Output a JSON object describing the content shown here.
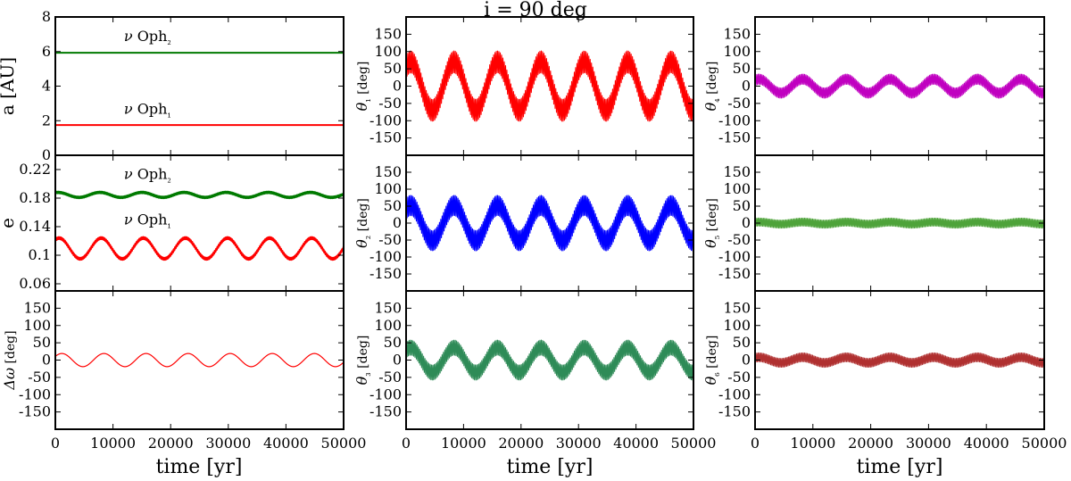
{
  "figure": {
    "title": "i = 90 deg",
    "xlabel": "time [yr]"
  },
  "colors": {
    "red": "#ff0000",
    "green": "#007a00",
    "blue": "#0000ff",
    "magenta": "#c000c0",
    "seagreen": "#2e8b57",
    "lightgreen": "#4ea33a",
    "brown": "#b03030"
  },
  "chart_data": [
    {
      "id": "a",
      "type": "line",
      "ylabel": "a [AU]",
      "xlim": [
        0,
        50000
      ],
      "ylim": [
        0,
        8
      ],
      "x_ticks": [
        0,
        10000,
        20000,
        30000,
        40000,
        50000
      ],
      "x_tick_labels_shown": false,
      "y_ticks": [
        0,
        2,
        4,
        6,
        8
      ],
      "y_tick_labels": [
        "0",
        "2",
        "4",
        "6",
        "8"
      ],
      "annotations": [
        {
          "text": "ν Oph₂",
          "x": 16000,
          "y": 6.6
        },
        {
          "text": "ν Oph₁",
          "x": 16000,
          "y": 2.4
        }
      ],
      "series": [
        {
          "name": "ν Oph₂",
          "color": "green",
          "mean": 5.93,
          "slow_amp": 0,
          "slow_period": 1,
          "fast_amp": 0,
          "fast_period": 1,
          "phase": 0,
          "width": 2
        },
        {
          "name": "ν Oph₁",
          "color": "red",
          "mean": 1.75,
          "slow_amp": 0,
          "slow_period": 1,
          "fast_amp": 0,
          "fast_period": 1,
          "phase": 0,
          "width": 2
        }
      ]
    },
    {
      "id": "e",
      "type": "line",
      "ylabel": "e",
      "xlim": [
        0,
        50000
      ],
      "ylim": [
        0.05,
        0.24
      ],
      "x_ticks": [
        0,
        10000,
        20000,
        30000,
        40000,
        50000
      ],
      "x_tick_labels_shown": false,
      "y_ticks": [
        0.06,
        0.1,
        0.14,
        0.18,
        0.22
      ],
      "y_tick_labels": [
        "0.06",
        "0.1",
        "0.14",
        "0.18",
        "0.22"
      ],
      "annotations": [
        {
          "text": "ν Oph₂",
          "x": 16000,
          "y": 0.207
        },
        {
          "text": "ν Oph₁",
          "x": 16000,
          "y": 0.143
        }
      ],
      "series": [
        {
          "name": "ν Oph₂",
          "color": "green",
          "mean": 0.1845,
          "slow_amp": 0.0035,
          "slow_period": 7300,
          "fast_amp": 0.0012,
          "fast_period": 230,
          "phase": 1.2,
          "width": 2
        },
        {
          "name": "ν Oph₁",
          "color": "red",
          "mean": 0.1095,
          "slow_amp": 0.0145,
          "slow_period": 7300,
          "fast_amp": 0.0015,
          "fast_period": 230,
          "phase": 1.0,
          "width": 2
        }
      ]
    },
    {
      "id": "dw",
      "type": "line",
      "ylabel": "Δω [deg]",
      "xlim": [
        0,
        50000
      ],
      "ylim": [
        -200,
        200
      ],
      "x_ticks": [
        0,
        10000,
        20000,
        30000,
        40000,
        50000
      ],
      "x_tick_labels": [
        "0",
        "10000",
        "20000",
        "30000",
        "40000",
        "50000"
      ],
      "y_ticks": [
        -150,
        -100,
        -50,
        0,
        50,
        100,
        150
      ],
      "y_tick_labels": [
        "-150",
        "-100",
        "-50",
        "0",
        "50",
        "100",
        "150"
      ],
      "series": [
        {
          "color": "red",
          "mean": 0,
          "slow_amp": 19,
          "slow_period": 7300,
          "fast_amp": 0,
          "fast_period": 1,
          "phase": 0.6,
          "width": 1.2
        }
      ]
    },
    {
      "id": "t1",
      "type": "line",
      "ylabel": "θ₁ [deg]",
      "xlim": [
        0,
        50000
      ],
      "ylim": [
        -200,
        200
      ],
      "x_ticks": [
        0,
        10000,
        20000,
        30000,
        40000,
        50000
      ],
      "x_tick_labels_shown": false,
      "y_ticks": [
        -150,
        -100,
        -50,
        0,
        50,
        100,
        150
      ],
      "y_tick_labels": [
        "-150",
        "-100",
        "-50",
        "0",
        "50",
        "100",
        "150"
      ],
      "series": [
        {
          "color": "red",
          "mean": 0,
          "slow_amp": 70,
          "slow_period": 7550,
          "fast_amp": 32,
          "fast_period": 230,
          "phase": 0.9,
          "width": 1
        }
      ]
    },
    {
      "id": "t2",
      "type": "line",
      "ylabel": "θ₂ [deg]",
      "xlim": [
        0,
        50000
      ],
      "ylim": [
        -200,
        200
      ],
      "x_ticks": [
        0,
        10000,
        20000,
        30000,
        40000,
        50000
      ],
      "x_tick_labels_shown": false,
      "y_ticks": [
        -150,
        -100,
        -50,
        0,
        50,
        100,
        150
      ],
      "y_tick_labels": [
        "-150",
        "-100",
        "-50",
        "0",
        "50",
        "100",
        "150"
      ],
      "series": [
        {
          "color": "blue",
          "mean": 0,
          "slow_amp": 52,
          "slow_period": 7550,
          "fast_amp": 30,
          "fast_period": 230,
          "phase": 0.9,
          "width": 1
        }
      ]
    },
    {
      "id": "t3",
      "type": "line",
      "ylabel": "θ₃ [deg]",
      "xlim": [
        0,
        50000
      ],
      "ylim": [
        -200,
        200
      ],
      "x_ticks": [
        0,
        10000,
        20000,
        30000,
        40000,
        50000
      ],
      "x_tick_labels": [
        "0",
        "10000",
        "20000",
        "30000",
        "40000",
        "50000"
      ],
      "y_ticks": [
        -150,
        -100,
        -50,
        0,
        50,
        100,
        150
      ],
      "y_tick_labels": [
        "-150",
        "-100",
        "-50",
        "0",
        "50",
        "100",
        "150"
      ],
      "series": [
        {
          "color": "seagreen",
          "mean": 0,
          "slow_amp": 36,
          "slow_period": 7550,
          "fast_amp": 22,
          "fast_period": 230,
          "phase": 0.9,
          "width": 1
        }
      ]
    },
    {
      "id": "t4",
      "type": "line",
      "ylabel": "θ₄ [deg]",
      "xlim": [
        0,
        50000
      ],
      "ylim": [
        -200,
        200
      ],
      "x_ticks": [
        0,
        10000,
        20000,
        30000,
        40000,
        50000
      ],
      "x_tick_labels_shown": false,
      "y_ticks": [
        -150,
        -100,
        -50,
        0,
        50,
        100,
        150
      ],
      "y_tick_labels": [
        "-150",
        "-100",
        "-50",
        "0",
        "50",
        "100",
        "150"
      ],
      "series": [
        {
          "color": "magenta",
          "mean": 0,
          "slow_amp": 20,
          "slow_period": 7550,
          "fast_amp": 15,
          "fast_period": 230,
          "phase": 1.0,
          "width": 1
        }
      ]
    },
    {
      "id": "t5",
      "type": "line",
      "ylabel": "θ₅ [deg]",
      "xlim": [
        0,
        50000
      ],
      "ylim": [
        -200,
        200
      ],
      "x_ticks": [
        0,
        10000,
        20000,
        30000,
        40000,
        50000
      ],
      "x_tick_labels_shown": false,
      "y_ticks": [
        -150,
        -100,
        -50,
        0,
        50,
        100,
        150
      ],
      "y_tick_labels": [
        "-150",
        "-100",
        "-50",
        "0",
        "50",
        "100",
        "150"
      ],
      "series": [
        {
          "color": "lightgreen",
          "mean": 0,
          "slow_amp": 3,
          "slow_period": 7550,
          "fast_amp": 12,
          "fast_period": 230,
          "phase": 1.0,
          "width": 1
        }
      ]
    },
    {
      "id": "t6",
      "type": "line",
      "ylabel": "θ₆ [deg]",
      "xlim": [
        0,
        50000
      ],
      "ylim": [
        -200,
        200
      ],
      "x_ticks": [
        0,
        10000,
        20000,
        30000,
        40000,
        50000
      ],
      "x_tick_labels": [
        "0",
        "10000",
        "20000",
        "30000",
        "40000",
        "50000"
      ],
      "y_ticks": [
        -150,
        -100,
        -50,
        0,
        50,
        100,
        150
      ],
      "y_tick_labels": [
        "-150",
        "-100",
        "-50",
        "0",
        "50",
        "100",
        "150"
      ],
      "series": [
        {
          "color": "brown",
          "mean": 0,
          "slow_amp": 8,
          "slow_period": 7550,
          "fast_amp": 13,
          "fast_period": 230,
          "phase": 1.0,
          "width": 1
        }
      ]
    }
  ]
}
